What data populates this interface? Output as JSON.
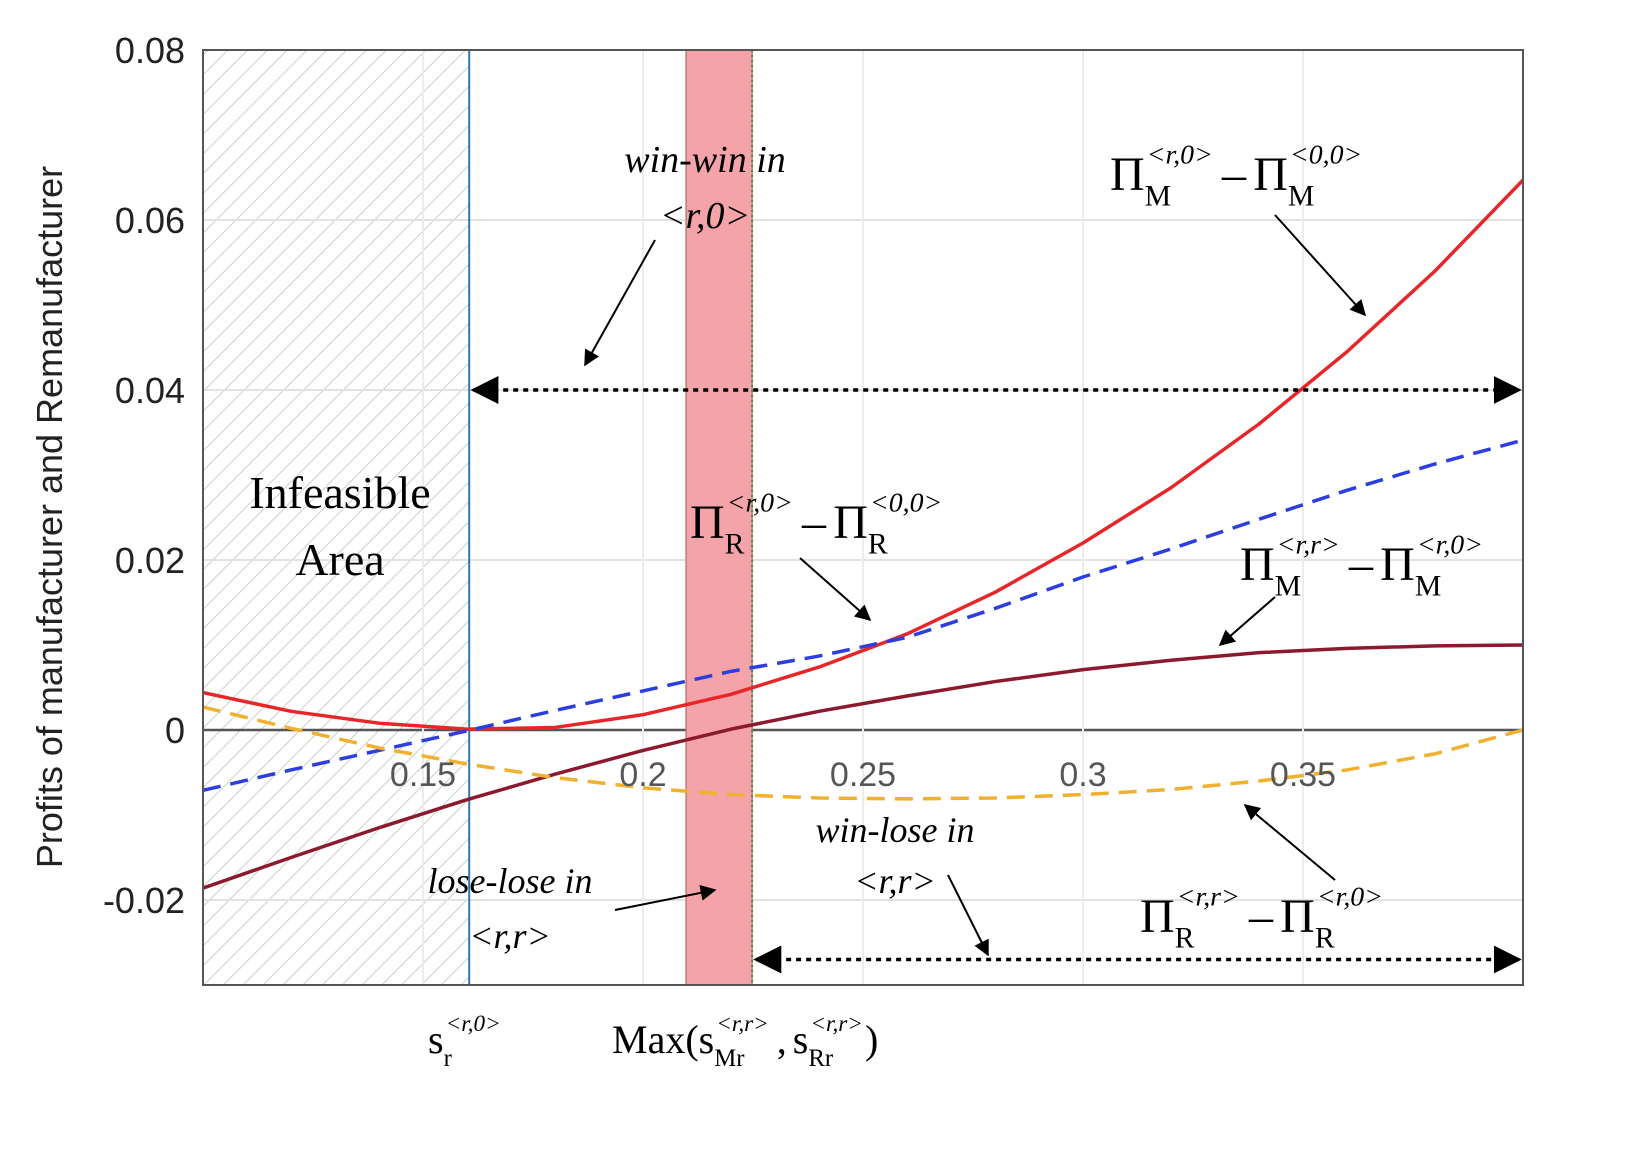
{
  "chart_data": {
    "type": "line",
    "y_label": "Profits of manufacturer and Remanufacturer",
    "xlim": [
      0.1,
      0.4
    ],
    "ylim": [
      -0.03,
      0.08
    ],
    "xticks": [
      0.15,
      0.2,
      0.25,
      0.3,
      0.35
    ],
    "yticks": [
      0.08,
      0.06,
      0.04,
      0.02,
      0,
      -0.02
    ],
    "grid": true,
    "x": [
      0.1,
      0.12,
      0.14,
      0.16,
      0.18,
      0.2,
      0.22,
      0.24,
      0.26,
      0.28,
      0.3,
      0.32,
      0.34,
      0.36,
      0.38,
      0.4
    ],
    "series": [
      {
        "color": "#e8262a",
        "dash": false,
        "label": {
          "terms": [
            {
              "symbol": "Π",
              "sub": "M",
              "sup": "<r,0>"
            },
            {
              "symbol": "Π",
              "sub": "M",
              "sup": "<0,0>"
            }
          ],
          "operator": "–"
        },
        "values": [
          0.0044,
          0.0022,
          0.0008,
          0.0001,
          0.0003,
          0.0018,
          0.0042,
          0.0074,
          0.0113,
          0.0162,
          0.022,
          0.0285,
          0.036,
          0.0445,
          0.054,
          0.0647
        ]
      },
      {
        "color": "#2d3ee0",
        "dash": true,
        "label": {
          "terms": [
            {
              "symbol": "Π",
              "sub": "R",
              "sup": "<r,0>"
            },
            {
              "symbol": "Π",
              "sub": "R",
              "sup": "<0,0>"
            }
          ],
          "operator": "–"
        },
        "values": [
          -0.0071,
          -0.0047,
          -0.0024,
          -0.0001,
          0.0023,
          0.0046,
          0.0069,
          0.0087,
          0.0109,
          0.0143,
          0.018,
          0.0213,
          0.0248,
          0.0282,
          0.0313,
          0.0341
        ]
      },
      {
        "color": "#8b1a2e",
        "dash": false,
        "label": {
          "terms": [
            {
              "symbol": "Π",
              "sub": "M",
              "sup": "<r,r>"
            },
            {
              "symbol": "Π",
              "sub": "M",
              "sup": "<r,0>"
            }
          ],
          "operator": "–"
        },
        "values": [
          -0.0186,
          -0.015,
          -0.0115,
          -0.0082,
          -0.0052,
          -0.0024,
          0.0001,
          0.0022,
          0.004,
          0.0057,
          0.0071,
          0.0082,
          0.0091,
          0.0096,
          0.0099,
          0.01
        ]
      },
      {
        "color": "#f0b030",
        "dash": true,
        "label": {
          "terms": [
            {
              "symbol": "Π",
              "sub": "R",
              "sup": "<r,r>"
            },
            {
              "symbol": "Π",
              "sub": "R",
              "sup": "<r,0>"
            }
          ],
          "operator": "–"
        },
        "values": [
          0.0027,
          0.0002,
          -0.0021,
          -0.004,
          -0.0056,
          -0.0068,
          -0.0076,
          -0.008,
          -0.0081,
          -0.008,
          -0.0076,
          -0.007,
          -0.006,
          -0.0047,
          -0.0028,
          0.0
        ]
      }
    ],
    "infeasible_region": [
      0.1,
      0.1605
    ],
    "highlight_band": [
      0.2098,
      0.2248
    ],
    "x_markers": [
      {
        "value": 0.1605,
        "label": {
          "terms": [
            {
              "symbol": "s",
              "sub": "r",
              "sup": "<r,0>"
            }
          ]
        }
      },
      {
        "value": 0.2248,
        "label": {
          "prefix": "Max(",
          "terms": [
            {
              "symbol": "s",
              "sub": "Mr",
              "sup": "<r,r>"
            },
            {
              "symbol": "s",
              "sub": "Rr",
              "sup": "<r,r>"
            }
          ],
          "operator": ",",
          "suffix": ")"
        }
      }
    ],
    "ranges": [
      {
        "x": [
          0.1605,
          0.4
        ],
        "y": 0.04
      },
      {
        "x": [
          0.2248,
          0.4
        ],
        "y": -0.027
      }
    ],
    "infeasible_label": [
      "Infeasible",
      "Area"
    ],
    "win_win_label": [
      "win-win in",
      "<r,0>"
    ],
    "lose_lose_label": [
      "lose-lose in",
      "<r,r>"
    ],
    "win_lose_label": [
      "win-lose in",
      "<r,r>"
    ]
  }
}
